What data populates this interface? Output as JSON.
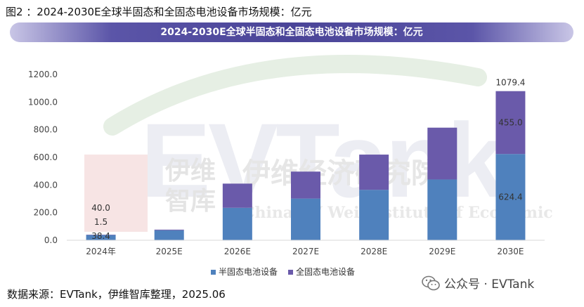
{
  "figure_title": "图2 ：2024-2030E全球半固态和全固态电池设备市场规模：亿元",
  "source": "数据来源：EVTank，伊维智库整理，2025.06",
  "wechat_label": "公众号 · EVTank",
  "watermark": {
    "logo": "EVTank",
    "cn_name": "伊维经济研究院",
    "cn_short_line1": "伊维",
    "cn_short_line2": "智库",
    "en_name": "China EV Wei Institute of Economic"
  },
  "chart_data": {
    "type": "bar",
    "stacked": true,
    "title": "2024-2030E全球半固态和全固态电池设备市场规模：亿元",
    "categories": [
      "2024年",
      "2025E",
      "2026E",
      "2027E",
      "2028E",
      "2029E",
      "2030E"
    ],
    "yticks": [
      "0.0",
      "200.0",
      "400.0",
      "600.0",
      "800.0",
      "1000.0",
      "1200.0"
    ],
    "ylim": [
      0,
      1200
    ],
    "grid": false,
    "legend_position": "bottom",
    "series": [
      {
        "name": "半固态电池设备",
        "color": "#4f81bd",
        "values": [
          38.4,
          72,
          235,
          302,
          365,
          440,
          624.4
        ]
      },
      {
        "name": "全固态电池设备",
        "color": "#6a5aaa",
        "values": [
          1.5,
          5,
          175,
          195,
          255,
          375,
          455.0
        ]
      }
    ],
    "totals": [
      40.0,
      77,
      410,
      497,
      620,
      815,
      1079.4
    ],
    "data_labels": [
      {
        "category": "2024年",
        "series": "半固态电池设备",
        "text": "38.4"
      },
      {
        "category": "2024年",
        "series": "全固态电池设备",
        "text": "1.5"
      },
      {
        "category": "2024年",
        "series": "total",
        "text": "40.0"
      },
      {
        "category": "2030E",
        "series": "半固态电池设备",
        "text": "624.4"
      },
      {
        "category": "2030E",
        "series": "全固态电池设备",
        "text": "455.0"
      },
      {
        "category": "2030E",
        "series": "total",
        "text": "1079.4"
      }
    ]
  }
}
